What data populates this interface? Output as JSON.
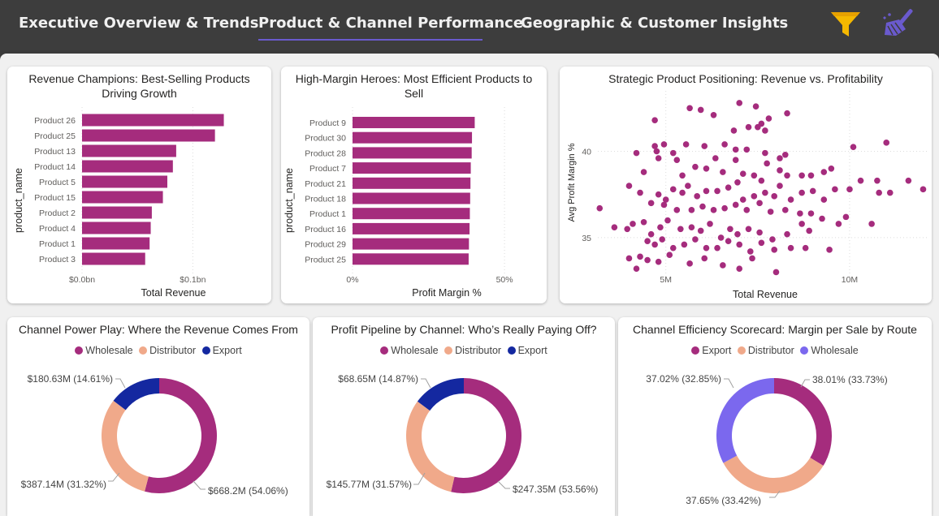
{
  "nav": {
    "tabs": [
      "Executive Overview & Trends",
      "Product & Channel Performance",
      "Geographic & Customer Insights"
    ],
    "active_tab": 1,
    "filter_icon": "funnel-icon",
    "clear_icon": "broom-icon",
    "colors": {
      "bar_bg": "#3d3d3d",
      "tab_text": "#f0f0f0",
      "underline": "#6a5acd",
      "funnel": "#f5b800",
      "broom": "#6a5acd"
    }
  },
  "colors": {
    "magenta": "#a52c7d",
    "salmon": "#f0a98a",
    "navy": "#1428a0",
    "lavender": "#7b68ee"
  },
  "chart_data": [
    {
      "id": "revenue-champions",
      "type": "bar",
      "orientation": "horizontal",
      "title": "Revenue Champions: Best-Selling Products Driving Growth",
      "xlabel": "Total Revenue",
      "ylabel": "product_name",
      "categories": [
        "Product 26",
        "Product 25",
        "Product 13",
        "Product 14",
        "Product 5",
        "Product 15",
        "Product 2",
        "Product 4",
        "Product 1",
        "Product 3"
      ],
      "values": [
        0.128,
        0.12,
        0.085,
        0.082,
        0.077,
        0.073,
        0.063,
        0.062,
        0.061,
        0.057
      ],
      "value_unit": "bn",
      "xlim": [
        0,
        0.165
      ],
      "xticks": [
        {
          "value": 0,
          "label": "$0.0bn"
        },
        {
          "value": 0.1,
          "label": "$0.1bn"
        }
      ],
      "grid": true,
      "color": "#a52c7d"
    },
    {
      "id": "high-margin-heroes",
      "type": "bar",
      "orientation": "horizontal",
      "title": "High-Margin Heroes: Most Efficient Products to Sell",
      "xlabel": "Profit Margin %",
      "ylabel": "product_name",
      "categories": [
        "Product 9",
        "Product 30",
        "Product 28",
        "Product 7",
        "Product 21",
        "Product 18",
        "Product 1",
        "Product 16",
        "Product 29",
        "Product 25"
      ],
      "values": [
        40.2,
        39.3,
        39.2,
        38.9,
        38.8,
        38.7,
        38.6,
        38.5,
        38.3,
        38.2
      ],
      "xlim": [
        0,
        62
      ],
      "xticks": [
        {
          "value": 0,
          "label": "0%"
        },
        {
          "value": 50,
          "label": "50%"
        }
      ],
      "grid": true,
      "color": "#a52c7d"
    },
    {
      "id": "strategic-positioning",
      "type": "scatter",
      "title": "Strategic Product Positioning: Revenue vs. Profitability",
      "xlabel": "Total Revenue",
      "ylabel": "Avg Profit Margin %",
      "xlim": [
        3.15,
        12.1
      ],
      "ylim": [
        32.6,
        43.5
      ],
      "xticks": [
        {
          "value": 5,
          "label": "5M"
        },
        {
          "value": 10,
          "label": "10M"
        }
      ],
      "yticks": [
        {
          "value": 35,
          "label": "35"
        },
        {
          "value": 40,
          "label": "40"
        }
      ],
      "grid": true,
      "color": "#a52c7d",
      "points": [
        [
          7.0,
          42.8
        ],
        [
          5.65,
          42.5
        ],
        [
          5.95,
          42.4
        ],
        [
          7.45,
          42.6
        ],
        [
          7.8,
          41.9
        ],
        [
          8.3,
          42.2
        ],
        [
          6.3,
          42.1
        ],
        [
          7.6,
          41.6
        ],
        [
          4.7,
          41.8
        ],
        [
          6.85,
          41.2
        ],
        [
          7.25,
          41.4
        ],
        [
          7.5,
          41.4
        ],
        [
          7.7,
          41.2
        ],
        [
          4.7,
          40.3
        ],
        [
          4.75,
          40.0
        ],
        [
          4.95,
          40.4
        ],
        [
          5.2,
          39.9
        ],
        [
          5.55,
          40.4
        ],
        [
          6.05,
          40.3
        ],
        [
          6.6,
          40.4
        ],
        [
          6.9,
          40.1
        ],
        [
          7.2,
          40.1
        ],
        [
          7.7,
          39.9
        ],
        [
          8.25,
          39.8
        ],
        [
          8.1,
          39.6
        ],
        [
          10.1,
          40.25
        ],
        [
          11.0,
          40.5
        ],
        [
          4.2,
          39.9
        ],
        [
          4.4,
          38.8
        ],
        [
          4.8,
          39.6
        ],
        [
          5.3,
          39.5
        ],
        [
          5.45,
          38.6
        ],
        [
          5.8,
          39.1
        ],
        [
          6.1,
          39.0
        ],
        [
          6.35,
          39.6
        ],
        [
          6.55,
          38.8
        ],
        [
          6.9,
          39.5
        ],
        [
          7.1,
          38.7
        ],
        [
          7.4,
          38.6
        ],
        [
          7.6,
          38.3
        ],
        [
          7.75,
          39.3
        ],
        [
          8.1,
          38.9
        ],
        [
          8.3,
          38.6
        ],
        [
          8.7,
          38.6
        ],
        [
          8.95,
          38.6
        ],
        [
          9.3,
          38.8
        ],
        [
          9.5,
          39.0
        ],
        [
          10.3,
          38.3
        ],
        [
          10.75,
          38.3
        ],
        [
          11.6,
          38.3
        ],
        [
          12.0,
          37.8
        ],
        [
          4.0,
          38.0
        ],
        [
          4.3,
          37.6
        ],
        [
          4.8,
          37.5
        ],
        [
          5.0,
          37.2
        ],
        [
          5.2,
          37.8
        ],
        [
          5.45,
          37.6
        ],
        [
          5.6,
          38.0
        ],
        [
          5.85,
          37.4
        ],
        [
          6.1,
          37.7
        ],
        [
          6.4,
          37.7
        ],
        [
          6.7,
          37.9
        ],
        [
          6.95,
          38.2
        ],
        [
          7.1,
          37.2
        ],
        [
          7.4,
          37.4
        ],
        [
          7.7,
          37.6
        ],
        [
          7.95,
          37.4
        ],
        [
          8.1,
          38.0
        ],
        [
          8.4,
          37.2
        ],
        [
          8.7,
          37.6
        ],
        [
          9.0,
          37.7
        ],
        [
          9.3,
          37.2
        ],
        [
          9.6,
          37.8
        ],
        [
          10.0,
          37.8
        ],
        [
          10.8,
          37.6
        ],
        [
          11.1,
          37.6
        ],
        [
          4.6,
          37.0
        ],
        [
          4.95,
          36.9
        ],
        [
          5.3,
          36.6
        ],
        [
          5.7,
          36.6
        ],
        [
          6.0,
          36.8
        ],
        [
          6.3,
          36.6
        ],
        [
          6.6,
          36.7
        ],
        [
          6.9,
          36.9
        ],
        [
          7.2,
          36.6
        ],
        [
          7.55,
          37.0
        ],
        [
          7.85,
          36.5
        ],
        [
          8.25,
          36.6
        ],
        [
          8.65,
          36.4
        ],
        [
          8.95,
          36.4
        ],
        [
          9.25,
          36.1
        ],
        [
          9.9,
          36.2
        ],
        [
          3.2,
          36.7
        ],
        [
          3.6,
          35.6
        ],
        [
          3.95,
          35.5
        ],
        [
          4.1,
          35.8
        ],
        [
          4.4,
          35.9
        ],
        [
          4.6,
          35.2
        ],
        [
          4.85,
          35.6
        ],
        [
          5.05,
          36.0
        ],
        [
          5.4,
          35.5
        ],
        [
          5.7,
          35.6
        ],
        [
          5.95,
          35.4
        ],
        [
          6.2,
          35.8
        ],
        [
          6.5,
          35.0
        ],
        [
          6.75,
          35.5
        ],
        [
          6.95,
          35.2
        ],
        [
          7.25,
          35.5
        ],
        [
          7.55,
          35.3
        ],
        [
          7.9,
          34.9
        ],
        [
          8.3,
          35.2
        ],
        [
          8.7,
          35.8
        ],
        [
          8.9,
          35.4
        ],
        [
          9.7,
          35.8
        ],
        [
          10.6,
          35.8
        ],
        [
          4.5,
          34.8
        ],
        [
          4.7,
          34.6
        ],
        [
          4.9,
          34.9
        ],
        [
          5.2,
          34.4
        ],
        [
          5.5,
          34.6
        ],
        [
          5.8,
          34.9
        ],
        [
          6.1,
          34.4
        ],
        [
          6.4,
          34.4
        ],
        [
          6.7,
          34.8
        ],
        [
          7.0,
          34.6
        ],
        [
          7.3,
          34.2
        ],
        [
          7.6,
          34.7
        ],
        [
          7.95,
          34.3
        ],
        [
          8.4,
          34.4
        ],
        [
          8.8,
          34.4
        ],
        [
          9.45,
          34.3
        ],
        [
          4.0,
          33.8
        ],
        [
          4.3,
          33.9
        ],
        [
          4.5,
          33.7
        ],
        [
          4.8,
          33.6
        ],
        [
          5.1,
          34.0
        ],
        [
          5.65,
          33.5
        ],
        [
          6.05,
          33.8
        ],
        [
          6.55,
          33.4
        ],
        [
          7.0,
          33.2
        ],
        [
          7.35,
          33.8
        ],
        [
          8.0,
          33.0
        ],
        [
          4.2,
          33.2
        ]
      ]
    },
    {
      "id": "channel-power-play",
      "type": "pie",
      "donut": true,
      "title": "Channel Power Play: Where the Revenue Comes From",
      "legend": [
        "Wholesale",
        "Distributor",
        "Export"
      ],
      "slices": [
        {
          "name": "Wholesale",
          "value": 668.2,
          "label": "$668.2M (54.06%)",
          "color": "#a52c7d"
        },
        {
          "name": "Distributor",
          "value": 387.14,
          "label": "$387.14M (31.32%)",
          "color": "#f0a98a"
        },
        {
          "name": "Export",
          "value": 180.63,
          "label": "$180.63M (14.61%)",
          "color": "#1428a0"
        }
      ]
    },
    {
      "id": "profit-pipeline",
      "type": "pie",
      "donut": true,
      "title": "Profit Pipeline by Channel: Who’s Really Paying Off?",
      "legend": [
        "Wholesale",
        "Distributor",
        "Export"
      ],
      "slices": [
        {
          "name": "Wholesale",
          "value": 247.35,
          "label": "$247.35M (53.56%)",
          "color": "#a52c7d"
        },
        {
          "name": "Distributor",
          "value": 145.77,
          "label": "$145.77M (31.57%)",
          "color": "#f0a98a"
        },
        {
          "name": "Export",
          "value": 68.65,
          "label": "$68.65M (14.87%)",
          "color": "#1428a0"
        }
      ]
    },
    {
      "id": "channel-efficiency",
      "type": "pie",
      "donut": true,
      "title": "Channel Efficiency Scorecard: Margin per Sale by Route",
      "legend": [
        "Export",
        "Distributor",
        "Wholesale"
      ],
      "slices": [
        {
          "name": "Export",
          "value": 38.01,
          "label": "38.01% (33.73%)",
          "color": "#a52c7d"
        },
        {
          "name": "Distributor",
          "value": 37.65,
          "label": "37.65% (33.42%)",
          "color": "#f0a98a"
        },
        {
          "name": "Wholesale",
          "value": 37.02,
          "label": "37.02% (32.85%)",
          "color": "#7b68ee"
        }
      ]
    }
  ]
}
